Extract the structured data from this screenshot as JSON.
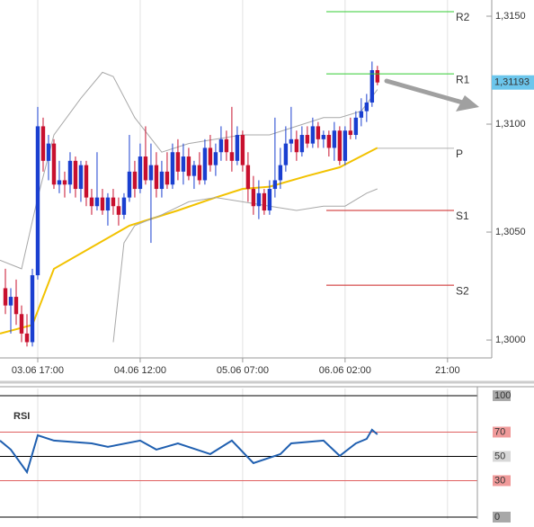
{
  "chart_data": [
    {
      "type": "candlestick",
      "xlim": [
        10,
        101.2
      ],
      "xticks": [
        {
          "value": 17,
          "label": "03.06 17:00"
        },
        {
          "value": 36,
          "label": "04.06 12:00"
        },
        {
          "value": 55,
          "label": "05.06 07:00"
        },
        {
          "value": 74,
          "label": "06.06 02:00"
        },
        {
          "value": 93,
          "label": "21:00"
        }
      ],
      "ylim": [
        1.29917,
        1.31575
      ],
      "yticks": [
        {
          "value": 1.315,
          "label": "1,3150"
        },
        {
          "value": 1.31,
          "label": "1,3100"
        },
        {
          "value": 1.305,
          "label": "1,3050"
        },
        {
          "value": 1.3,
          "label": "1,3000"
        }
      ],
      "grid": true,
      "up_color": "#1a3fd0",
      "down_color": "#c8102e",
      "x": [
        11,
        12,
        13,
        14,
        15,
        16,
        17,
        18,
        19,
        20,
        21,
        22,
        23,
        24,
        25,
        26,
        27,
        28,
        29,
        30,
        31,
        32,
        33,
        34,
        35,
        36,
        37,
        38,
        39,
        40,
        41,
        42,
        43,
        44,
        45,
        46,
        47,
        48,
        49,
        50,
        51,
        52,
        53,
        54,
        55,
        56,
        57,
        58,
        59,
        60,
        61,
        62,
        63,
        64,
        65,
        66,
        67,
        68,
        69,
        70,
        71,
        72,
        73,
        74,
        75,
        76,
        77,
        78,
        79,
        80
      ],
      "candles": [
        [
          1.3024,
          1.3033,
          1.3012,
          1.3016
        ],
        [
          1.3016,
          1.3024,
          1.3003,
          1.302
        ],
        [
          1.302,
          1.3028,
          1.3007,
          1.3012
        ],
        [
          1.3012,
          1.3016,
          1.2999,
          1.3003
        ],
        [
          1.3003,
          1.3012,
          1.2997,
          1.2999
        ],
        [
          1.2999,
          1.3033,
          1.2997,
          1.303
        ],
        [
          1.303,
          1.3108,
          1.3028,
          1.3099
        ],
        [
          1.3099,
          1.3103,
          1.3078,
          1.3083
        ],
        [
          1.3083,
          1.3095,
          1.3074,
          1.3091
        ],
        [
          1.3091,
          1.3093,
          1.307,
          1.3072
        ],
        [
          1.3072,
          1.3083,
          1.3068,
          1.3074
        ],
        [
          1.3074,
          1.3078,
          1.3066,
          1.3072
        ],
        [
          1.3072,
          1.3087,
          1.3068,
          1.3083
        ],
        [
          1.3083,
          1.3085,
          1.3066,
          1.307
        ],
        [
          1.307,
          1.3083,
          1.3064,
          1.3081
        ],
        [
          1.3081,
          1.3083,
          1.3062,
          1.3066
        ],
        [
          1.3066,
          1.307,
          1.3058,
          1.3062
        ],
        [
          1.3062,
          1.3087,
          1.306,
          1.3066
        ],
        [
          1.3066,
          1.307,
          1.3058,
          1.306
        ],
        [
          1.306,
          1.3068,
          1.3053,
          1.3066
        ],
        [
          1.3066,
          1.307,
          1.3058,
          1.3062
        ],
        [
          1.3062,
          1.3066,
          1.3053,
          1.3058
        ],
        [
          1.3058,
          1.3068,
          1.3056,
          1.3066
        ],
        [
          1.3066,
          1.3095,
          1.3064,
          1.3078
        ],
        [
          1.3078,
          1.3083,
          1.3066,
          1.307
        ],
        [
          1.307,
          1.3091,
          1.3068,
          1.3085
        ],
        [
          1.3085,
          1.3099,
          1.3072,
          1.3074
        ],
        [
          1.3074,
          1.3091,
          1.3045,
          1.3081
        ],
        [
          1.3081,
          1.3087,
          1.3066,
          1.307
        ],
        [
          1.307,
          1.3083,
          1.3066,
          1.3078
        ],
        [
          1.3078,
          1.3087,
          1.307,
          1.3072
        ],
        [
          1.3072,
          1.3091,
          1.307,
          1.3087
        ],
        [
          1.3087,
          1.3093,
          1.3074,
          1.3078
        ],
        [
          1.3078,
          1.3091,
          1.3072,
          1.3085
        ],
        [
          1.3085,
          1.3089,
          1.3074,
          1.3076
        ],
        [
          1.3076,
          1.3083,
          1.307,
          1.3081
        ],
        [
          1.3081,
          1.3087,
          1.3072,
          1.3074
        ],
        [
          1.3074,
          1.3093,
          1.3072,
          1.3089
        ],
        [
          1.3089,
          1.3095,
          1.3078,
          1.3081
        ],
        [
          1.3081,
          1.3091,
          1.3076,
          1.3087
        ],
        [
          1.3087,
          1.3099,
          1.3083,
          1.3093
        ],
        [
          1.3093,
          1.3097,
          1.3083,
          1.3087
        ],
        [
          1.3087,
          1.3108,
          1.3078,
          1.3083
        ],
        [
          1.3083,
          1.3099,
          1.3081,
          1.3095
        ],
        [
          1.3095,
          1.3097,
          1.3078,
          1.3081
        ],
        [
          1.3081,
          1.3087,
          1.3064,
          1.307
        ],
        [
          1.307,
          1.3076,
          1.3058,
          1.3062
        ],
        [
          1.3062,
          1.3074,
          1.3056,
          1.3068
        ],
        [
          1.3068,
          1.307,
          1.3058,
          1.306
        ],
        [
          1.306,
          1.3074,
          1.3058,
          1.307
        ],
        [
          1.307,
          1.3103,
          1.3066,
          1.3074
        ],
        [
          1.3074,
          1.3089,
          1.307,
          1.3081
        ],
        [
          1.3081,
          1.3099,
          1.3078,
          1.3091
        ],
        [
          1.3091,
          1.3108,
          1.3087,
          1.3093
        ],
        [
          1.3093,
          1.3097,
          1.3083,
          1.3087
        ],
        [
          1.3087,
          1.3099,
          1.3085,
          1.3095
        ],
        [
          1.3095,
          1.3099,
          1.3089,
          1.3091
        ],
        [
          1.3091,
          1.3103,
          1.3089,
          1.3099
        ],
        [
          1.3099,
          1.3101,
          1.3089,
          1.3093
        ],
        [
          1.3093,
          1.3097,
          1.3089,
          1.3095
        ],
        [
          1.3095,
          1.3097,
          1.3085,
          1.3089
        ],
        [
          1.3089,
          1.3101,
          1.3083,
          1.3097
        ],
        [
          1.3097,
          1.3099,
          1.3081,
          1.3083
        ],
        [
          1.3083,
          1.3099,
          1.3081,
          1.3097
        ],
        [
          1.3097,
          1.3103,
          1.3093,
          1.3095
        ],
        [
          1.3095,
          1.3106,
          1.3093,
          1.3103
        ],
        [
          1.3103,
          1.3112,
          1.3099,
          1.3106
        ],
        [
          1.3106,
          1.3114,
          1.3101,
          1.311
        ],
        [
          1.311,
          1.3129,
          1.3108,
          1.3125
        ],
        [
          1.3125,
          1.3127,
          1.3118,
          1.31193
        ]
      ],
      "lines": [
        {
          "color": "#f2c200",
          "x": [
            10,
            16,
            20,
            27,
            34,
            43,
            50,
            55,
            60,
            67,
            73,
            80
          ],
          "values": [
            1.3003,
            1.3007,
            1.3033,
            1.3043,
            1.3053,
            1.306,
            1.3066,
            1.307,
            1.3071,
            1.3076,
            1.308,
            1.3089
          ]
        },
        {
          "color": "#a8a8a8",
          "x": [
            10,
            14,
            17,
            20,
            25,
            29,
            31,
            35,
            40,
            45,
            50,
            55,
            60,
            65,
            70,
            73,
            77,
            80
          ],
          "values": [
            1.3037,
            1.3033,
            1.3066,
            1.3095,
            1.3112,
            1.3124,
            1.3122,
            1.3103,
            1.3087,
            1.3091,
            1.3093,
            1.3095,
            1.3095,
            1.3099,
            1.3103,
            1.3103,
            1.3106,
            1.3116
          ]
        },
        {
          "color": "#a8a8a8",
          "x": [
            31,
            33,
            35,
            40,
            45,
            50,
            55,
            60,
            65,
            70,
            74,
            78,
            80
          ],
          "values": [
            1.2999,
            1.3045,
            1.3053,
            1.3058,
            1.3064,
            1.3066,
            1.3064,
            1.3062,
            1.306,
            1.3062,
            1.3062,
            1.3068,
            1.307
          ]
        }
      ],
      "levels": [
        {
          "label": "R2",
          "value": 1.31521,
          "color": "#33cc33"
        },
        {
          "label": "R1",
          "value": 1.31233,
          "color": "#33cc33"
        },
        {
          "label": "P",
          "value": 1.30888,
          "color": "#b0b0b0"
        },
        {
          "label": "S1",
          "value": 1.306,
          "color": "#cc2222"
        },
        {
          "label": "S2",
          "value": 1.30254,
          "color": "#cc2222"
        }
      ],
      "last_price": {
        "value": 1.31193,
        "label": "1,31193",
        "color": "#6cc6ec"
      }
    },
    {
      "type": "line",
      "title": "RSI",
      "ylim": [
        -1.5,
        105.9
      ],
      "yticks": [
        100,
        70,
        50,
        30,
        0
      ],
      "ytick_backgrounds": [
        "#a8a8a8",
        "#f09a9a",
        "#d8d8d8",
        "#f09a9a",
        "#a8a8a8"
      ],
      "hline_colors": [
        "#000000",
        "#e06060",
        "#000000",
        "#e06060",
        "#000000"
      ],
      "series": [
        {
          "color": "#1f5fb0",
          "x": [
            10,
            12,
            15,
            17,
            20,
            27,
            30,
            36,
            39,
            43,
            49,
            53,
            57,
            62,
            64,
            70,
            73,
            76,
            78,
            79,
            80
          ],
          "values": [
            63,
            55.6,
            37,
            67.4,
            63,
            60.7,
            57.8,
            63,
            55.6,
            60.7,
            51.9,
            63,
            44.4,
            51.9,
            60.7,
            63,
            50.4,
            60.7,
            64.4,
            71.9,
            68.1
          ]
        }
      ]
    }
  ]
}
